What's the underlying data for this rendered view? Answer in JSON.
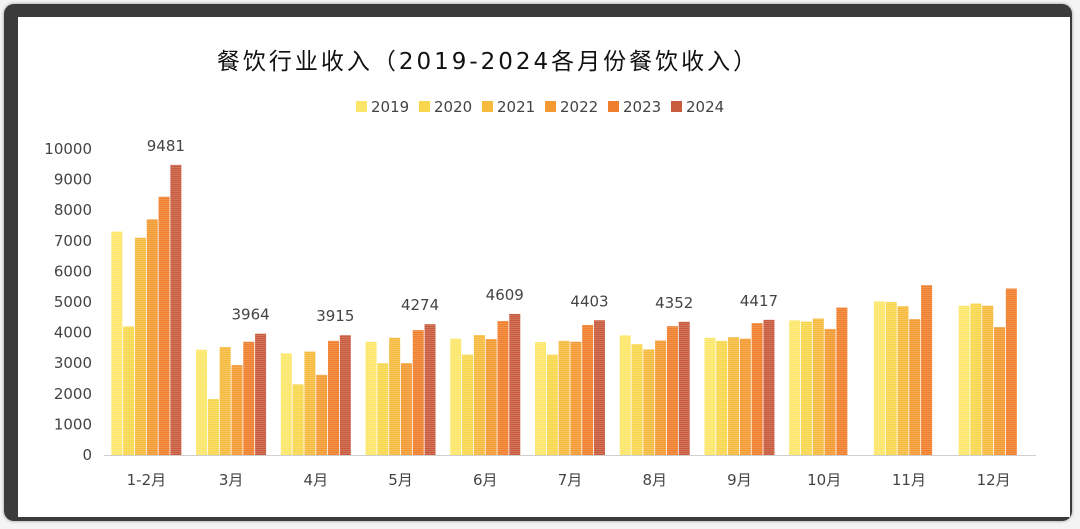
{
  "chart_data": {
    "type": "bar",
    "title": "餐饮行业收入（2019-2024各月份餐饮收入）",
    "xlabel": "",
    "ylabel": "",
    "ylim": [
      0,
      10000
    ],
    "yticks": [
      0,
      1000,
      2000,
      3000,
      4000,
      5000,
      6000,
      7000,
      8000,
      9000,
      10000
    ],
    "grid": false,
    "legend_position": "top",
    "categories": [
      "1-2月",
      "3月",
      "4月",
      "5月",
      "6月",
      "7月",
      "8月",
      "9月",
      "10月",
      "11月",
      "12月"
    ],
    "series": [
      {
        "name": "2019",
        "color": "#fbe66a",
        "values": [
          7300,
          3440,
          3320,
          3700,
          3800,
          3690,
          3910,
          3830,
          4400,
          5020,
          4880
        ]
      },
      {
        "name": "2020",
        "color": "#f8d64e",
        "values": [
          4200,
          1830,
          2310,
          3000,
          3280,
          3280,
          3620,
          3730,
          4360,
          5000,
          4950
        ]
      },
      {
        "name": "2021",
        "color": "#f6ba3e",
        "values": [
          7100,
          3530,
          3380,
          3830,
          3920,
          3730,
          3450,
          3850,
          4460,
          4860,
          4880
        ]
      },
      {
        "name": "2022",
        "color": "#f39a33",
        "values": [
          7700,
          2940,
          2620,
          3000,
          3790,
          3700,
          3740,
          3800,
          4120,
          4440,
          4180
        ]
      },
      {
        "name": "2023",
        "color": "#ef7f2c",
        "values": [
          8440,
          3700,
          3730,
          4080,
          4380,
          4250,
          4210,
          4310,
          4820,
          5550,
          5440
        ]
      },
      {
        "name": "2024",
        "color": "#c85b3e",
        "values": [
          9481,
          3964,
          3915,
          4274,
          4609,
          4403,
          4352,
          4417,
          null,
          null,
          null
        ]
      }
    ],
    "data_labels": {
      "series": "2024",
      "values": [
        "9481",
        "3964",
        "3915",
        "4274",
        "4609",
        "4403",
        "4352",
        "4417"
      ]
    }
  }
}
